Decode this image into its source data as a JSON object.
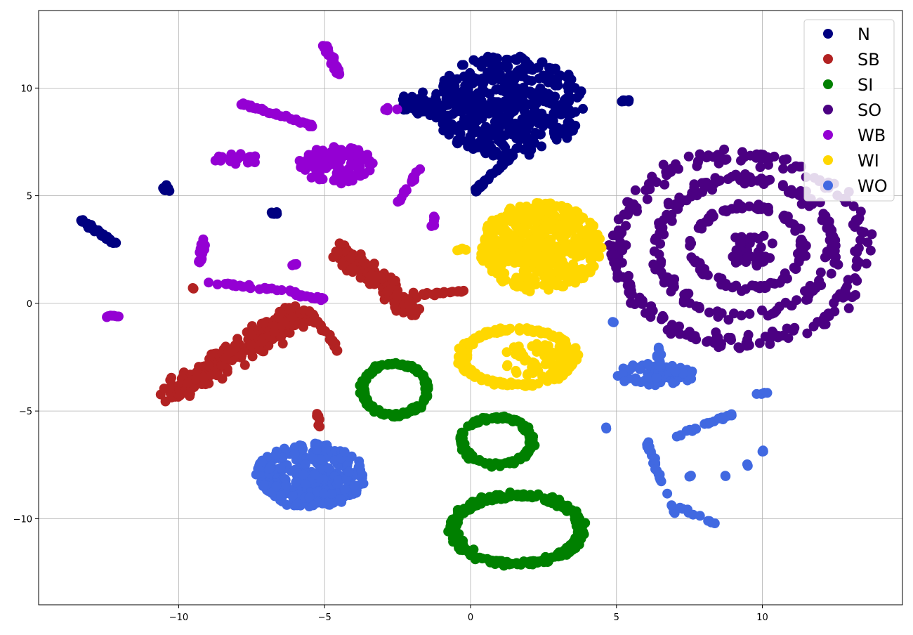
{
  "chart_data": {
    "type": "scatter",
    "title": "",
    "xlabel": "",
    "ylabel": "",
    "xlim": [
      -14.8,
      14.8
    ],
    "ylim": [
      -14.0,
      13.6
    ],
    "xticks": [
      -10,
      -5,
      0,
      5,
      10
    ],
    "yticks": [
      -10,
      -5,
      0,
      5,
      10
    ],
    "xtick_labels": [
      "−10",
      "−5",
      "0",
      "5",
      "10"
    ],
    "ytick_labels": [
      "−10",
      "−5",
      "0",
      "5",
      "10"
    ],
    "grid": true,
    "legend_position": "top-right",
    "series": [
      {
        "name": "N",
        "color": "#000080",
        "clusters": [
          {
            "shape": "blob",
            "cx": 1.3,
            "cy": 9.2,
            "rx": 2.6,
            "ry": 2.4,
            "n": 420
          },
          {
            "shape": "blob",
            "cx": -1.0,
            "cy": 9.3,
            "rx": 1.6,
            "ry": 0.6,
            "n": 80
          },
          {
            "shape": "line",
            "x1": 0.0,
            "y1": 5.0,
            "x2": 1.5,
            "y2": 7.0,
            "n": 40
          },
          {
            "shape": "line",
            "x1": -13.4,
            "y1": 3.9,
            "x2": -12.2,
            "y2": 2.8,
            "n": 40
          },
          {
            "shape": "blob",
            "cx": -10.4,
            "cy": 5.3,
            "rx": 0.15,
            "ry": 0.2,
            "n": 10
          },
          {
            "shape": "blob",
            "cx": -6.7,
            "cy": 4.2,
            "rx": 0.15,
            "ry": 0.05,
            "n": 6
          },
          {
            "shape": "blob",
            "cx": 5.3,
            "cy": 9.4,
            "rx": 0.25,
            "ry": 0.05,
            "n": 6
          }
        ]
      },
      {
        "name": "SB",
        "color": "#b22222",
        "clusters": [
          {
            "shape": "line",
            "x1": -10.3,
            "y1": -4.2,
            "x2": -5.7,
            "y2": -0.4,
            "n": 260,
            "spread": 0.75
          },
          {
            "shape": "line",
            "x1": -4.5,
            "y1": 2.5,
            "x2": -1.8,
            "y2": -0.4,
            "n": 160,
            "spread": 0.6
          },
          {
            "shape": "line",
            "x1": -1.7,
            "y1": 0.4,
            "x2": -0.2,
            "y2": 0.6,
            "n": 20
          },
          {
            "shape": "line",
            "x1": -5.5,
            "y1": -0.4,
            "x2": -4.5,
            "y2": -2.2,
            "n": 20
          },
          {
            "shape": "blob",
            "cx": -5.2,
            "cy": -5.4,
            "rx": 0.1,
            "ry": 0.35,
            "n": 6
          },
          {
            "shape": "blob",
            "cx": -9.5,
            "cy": 0.7,
            "rx": 0.05,
            "ry": 0.05,
            "n": 2
          }
        ]
      },
      {
        "name": "SI",
        "color": "#008000",
        "clusters": [
          {
            "shape": "ring",
            "cx": -2.6,
            "cy": -4.0,
            "r": 1.1,
            "ry": 1.2,
            "n": 170
          },
          {
            "shape": "ring",
            "cx": 0.9,
            "cy": -6.4,
            "r": 1.2,
            "ry": 1.1,
            "n": 150
          },
          {
            "shape": "ring",
            "cx": 1.6,
            "cy": -10.5,
            "r": 2.2,
            "ry": 1.6,
            "n": 280
          }
        ]
      },
      {
        "name": "SO",
        "color": "#4b0082",
        "clusters": [
          {
            "shape": "ring",
            "cx": 9.2,
            "cy": 2.5,
            "r": 4.2,
            "ry": 4.3,
            "n": 220
          },
          {
            "shape": "ring",
            "cx": 9.4,
            "cy": 2.6,
            "r": 3.0,
            "ry": 3.2,
            "n": 170
          },
          {
            "shape": "ring",
            "cx": 9.5,
            "cy": 2.6,
            "r": 1.9,
            "ry": 1.9,
            "n": 110
          },
          {
            "shape": "blob",
            "cx": 9.6,
            "cy": 2.5,
            "rx": 0.8,
            "ry": 0.8,
            "n": 40
          }
        ]
      },
      {
        "name": "WB",
        "color": "#9400d3",
        "clusters": [
          {
            "shape": "line",
            "x1": -5.0,
            "y1": 12.0,
            "x2": -4.5,
            "y2": 10.6,
            "n": 30
          },
          {
            "shape": "line",
            "x1": -7.9,
            "y1": 9.3,
            "x2": -5.3,
            "y2": 8.2,
            "n": 40
          },
          {
            "shape": "blob",
            "cx": -4.6,
            "cy": 6.4,
            "rx": 1.3,
            "ry": 0.9,
            "n": 100
          },
          {
            "shape": "blob",
            "cx": -8.0,
            "cy": 6.7,
            "rx": 0.9,
            "ry": 0.25,
            "n": 20
          },
          {
            "shape": "line",
            "x1": -2.5,
            "y1": 4.7,
            "x2": -1.7,
            "y2": 6.3,
            "n": 20
          },
          {
            "shape": "line",
            "x1": -9.1,
            "y1": 3.0,
            "x2": -9.3,
            "y2": 1.8,
            "n": 20
          },
          {
            "shape": "line",
            "x1": -9.0,
            "y1": 1.0,
            "x2": -6.0,
            "y2": 0.5,
            "n": 30
          },
          {
            "shape": "line",
            "x1": -6.0,
            "y1": 0.4,
            "x2": -5.0,
            "y2": 0.2,
            "n": 16
          },
          {
            "shape": "blob",
            "cx": -12.3,
            "cy": -0.6,
            "rx": 0.35,
            "ry": 0.05,
            "n": 10
          },
          {
            "shape": "blob",
            "cx": -6.0,
            "cy": 1.8,
            "rx": 0.15,
            "ry": 0.05,
            "n": 5
          },
          {
            "shape": "blob",
            "cx": -1.3,
            "cy": 3.8,
            "rx": 0.1,
            "ry": 0.3,
            "n": 6
          },
          {
            "shape": "blob",
            "cx": -2.7,
            "cy": 9.0,
            "rx": 0.25,
            "ry": 0.1,
            "n": 5
          }
        ]
      },
      {
        "name": "WI",
        "color": "#ffd700",
        "clusters": [
          {
            "shape": "blob",
            "cx": 2.4,
            "cy": 2.6,
            "rx": 2.1,
            "ry": 2.1,
            "n": 450
          },
          {
            "shape": "ring",
            "cx": 1.6,
            "cy": -2.5,
            "r": 1.9,
            "ry": 1.3,
            "n": 220
          },
          {
            "shape": "blob",
            "cx": 2.3,
            "cy": -2.6,
            "rx": 1.2,
            "ry": 0.8,
            "n": 60
          },
          {
            "shape": "blob",
            "cx": -0.3,
            "cy": 2.5,
            "rx": 0.2,
            "ry": 0.1,
            "n": 4
          }
        ]
      },
      {
        "name": "WO",
        "color": "#4169e1",
        "clusters": [
          {
            "shape": "blob",
            "cx": -5.5,
            "cy": -8.0,
            "rx": 1.9,
            "ry": 1.5,
            "n": 330
          },
          {
            "shape": "blob",
            "cx": 6.3,
            "cy": -3.3,
            "rx": 1.4,
            "ry": 0.5,
            "n": 60
          },
          {
            "shape": "line",
            "x1": 6.5,
            "y1": -2.0,
            "x2": 6.4,
            "y2": -3.5,
            "n": 20
          },
          {
            "shape": "line",
            "x1": 6.0,
            "y1": -6.4,
            "x2": 7.0,
            "y2": -9.8,
            "n": 24
          },
          {
            "shape": "line",
            "x1": 7.0,
            "y1": -6.2,
            "x2": 9.0,
            "y2": -5.1,
            "n": 22
          },
          {
            "shape": "line",
            "x1": 7.2,
            "y1": -9.5,
            "x2": 8.3,
            "y2": -10.2,
            "n": 10
          },
          {
            "shape": "blob",
            "cx": 10.0,
            "cy": -4.2,
            "rx": 0.2,
            "ry": 0.1,
            "n": 5
          },
          {
            "shape": "blob",
            "cx": 10.0,
            "cy": -6.8,
            "rx": 0.05,
            "ry": 0.1,
            "n": 3
          },
          {
            "shape": "blob",
            "cx": 7.5,
            "cy": -8.0,
            "rx": 0.1,
            "ry": 0.05,
            "n": 3
          },
          {
            "shape": "blob",
            "cx": 8.7,
            "cy": -8.0,
            "rx": 0.05,
            "ry": 0.05,
            "n": 2
          },
          {
            "shape": "blob",
            "cx": 9.5,
            "cy": -7.5,
            "rx": 0.05,
            "ry": 0.05,
            "n": 2
          },
          {
            "shape": "blob",
            "cx": 4.7,
            "cy": -5.8,
            "rx": 0.1,
            "ry": 0.05,
            "n": 2
          },
          {
            "shape": "blob",
            "cx": 4.9,
            "cy": -0.9,
            "rx": 0.05,
            "ry": 0.1,
            "n": 2
          }
        ]
      }
    ]
  }
}
